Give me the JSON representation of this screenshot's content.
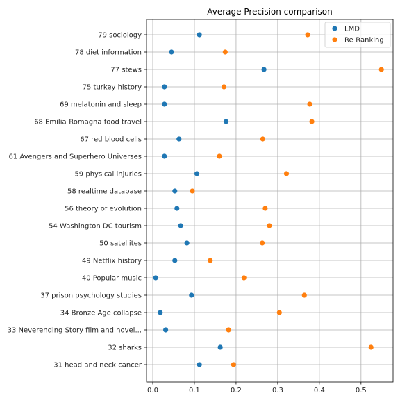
{
  "chart_data": {
    "type": "scatter",
    "title": "Average Precision comparison",
    "xlabel": "",
    "ylabel": "",
    "xlim": [
      -0.015,
      0.577
    ],
    "xticks": [
      "0.0",
      "0.1",
      "0.2",
      "0.3",
      "0.4",
      "0.5"
    ],
    "grid": true,
    "legend_position": "top-right",
    "categories": [
      "79 sociology",
      "78 diet information",
      "77 stews",
      "75 turkey history",
      "69 melatonin and sleep",
      "68 Emilia-Romagna food travel",
      "67 red blood cells",
      "61 Avengers and Superhero Universes",
      "59 physical injuries",
      "58 realtime database",
      "56 theory of evolution",
      "54 Washington DC tourism",
      "50 satellites",
      "49 Netflix history",
      "40 Popular music",
      "37 prison psychology studies",
      "34 Bronze Age collapse",
      "33 Neverending Story film and novel...",
      "32 sharks",
      "31 head and neck cancer"
    ],
    "series": [
      {
        "name": "LMD",
        "color": "#1f77b4",
        "values": [
          0.112,
          0.045,
          0.267,
          0.028,
          0.028,
          0.176,
          0.063,
          0.028,
          0.106,
          0.053,
          0.058,
          0.067,
          0.082,
          0.053,
          0.007,
          0.093,
          0.018,
          0.031,
          0.162,
          0.112
        ]
      },
      {
        "name": "Re-Ranking",
        "color": "#ff7f0e",
        "values": [
          0.372,
          0.174,
          0.549,
          0.171,
          0.377,
          0.382,
          0.264,
          0.16,
          0.321,
          0.095,
          0.27,
          0.28,
          0.263,
          0.138,
          0.219,
          0.364,
          0.304,
          0.182,
          0.524,
          0.194
        ]
      }
    ]
  }
}
